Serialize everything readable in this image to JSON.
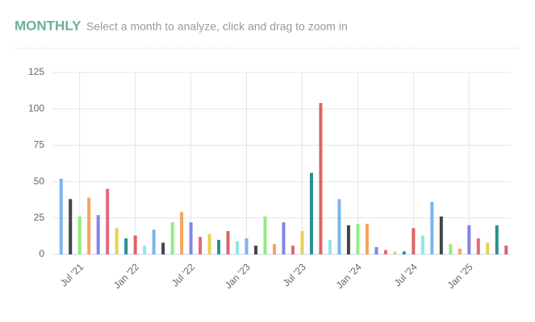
{
  "chart_data": {
    "type": "bar",
    "title": "MONTHLY",
    "subtitle": "Select a month to analyze, click and drag to zoom in",
    "categories": [
      null,
      null,
      "Jul '21",
      null,
      null,
      null,
      null,
      null,
      "Jan '22",
      null,
      null,
      null,
      null,
      null,
      "Jul '22",
      null,
      null,
      null,
      null,
      null,
      "Jan '23",
      null,
      null,
      null,
      null,
      null,
      "Jul '23",
      null,
      null,
      null,
      null,
      null,
      "Jan '24",
      null,
      null,
      null,
      null,
      null,
      "Jul '24",
      null,
      null,
      null,
      null,
      null,
      "Jan '25",
      null,
      null,
      null,
      null
    ],
    "values": [
      52,
      38,
      26,
      39,
      27,
      45,
      18,
      11,
      13,
      6,
      17,
      8,
      22,
      29,
      22,
      12,
      14,
      10,
      16,
      9,
      11,
      6,
      26,
      7,
      22,
      6,
      16,
      56,
      104,
      10,
      38,
      20,
      21,
      21,
      5,
      3,
      2,
      2,
      18,
      13,
      36,
      26,
      7,
      4,
      20,
      11,
      8,
      20,
      6
    ],
    "colors": [
      "#7cb5ec",
      "#434348",
      "#90ed7d",
      "#f7a35c",
      "#8085e9",
      "#e4687a",
      "#e4d354",
      "#2b908f",
      "#e06363",
      "#91e8e1"
    ],
    "ylim": [
      0,
      125
    ],
    "yticks": [
      0,
      25,
      50,
      75,
      100,
      125
    ],
    "grid": true
  }
}
